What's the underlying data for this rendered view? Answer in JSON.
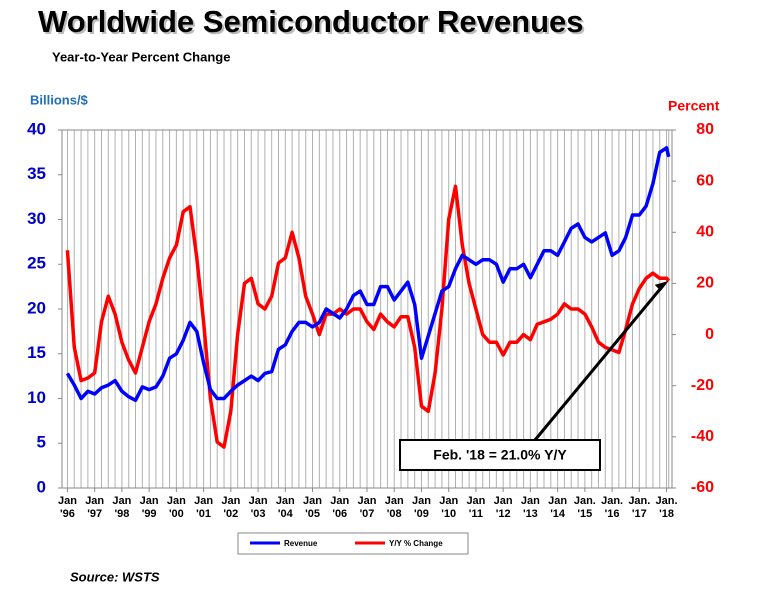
{
  "chart_data": {
    "type": "line",
    "title": "Worldwide Semiconductor Revenues",
    "subtitle": "Year-to-Year Percent Change",
    "y_label": "Billions/$",
    "y2_label": "Percent",
    "source": "Source: WSTS",
    "annotation": "Feb. '18 = 21.0% Y/Y",
    "x": [
      1996,
      1996.25,
      1996.5,
      1996.75,
      1997,
      1997.25,
      1997.5,
      1997.75,
      1998,
      1998.25,
      1998.5,
      1998.75,
      1999,
      1999.25,
      1999.5,
      1999.75,
      2000,
      2000.25,
      2000.5,
      2000.75,
      2001,
      2001.25,
      2001.5,
      2001.75,
      2002,
      2002.25,
      2002.5,
      2002.75,
      2003,
      2003.25,
      2003.5,
      2003.75,
      2004,
      2004.25,
      2004.5,
      2004.75,
      2005,
      2005.25,
      2005.5,
      2005.75,
      2006,
      2006.25,
      2006.5,
      2006.75,
      2007,
      2007.25,
      2007.5,
      2007.75,
      2008,
      2008.25,
      2008.5,
      2008.75,
      2009,
      2009.25,
      2009.5,
      2009.75,
      2010,
      2010.25,
      2010.5,
      2010.75,
      2011,
      2011.25,
      2011.5,
      2011.75,
      2012,
      2012.25,
      2012.5,
      2012.75,
      2013,
      2013.25,
      2013.5,
      2013.75,
      2014,
      2014.25,
      2014.5,
      2014.75,
      2015,
      2015.25,
      2015.5,
      2015.75,
      2016,
      2016.25,
      2016.5,
      2016.75,
      2017,
      2017.25,
      2017.5,
      2017.75,
      2018,
      2018.08
    ],
    "series": [
      {
        "name": "Revenue",
        "color": "#0000ff",
        "values": [
          12.8,
          11.5,
          10.0,
          10.8,
          10.5,
          11.2,
          11.5,
          12.0,
          10.8,
          10.2,
          9.8,
          11.3,
          11.0,
          11.3,
          12.5,
          14.5,
          15.0,
          16.5,
          18.5,
          17.5,
          14.0,
          11.0,
          10.0,
          10.0,
          10.8,
          11.5,
          12.0,
          12.5,
          12.0,
          12.8,
          13.0,
          15.5,
          16.0,
          17.5,
          18.5,
          18.5,
          18.0,
          18.5,
          20.0,
          19.5,
          19.0,
          20.0,
          21.5,
          22.0,
          20.5,
          20.5,
          22.5,
          22.5,
          21.0,
          22.0,
          23.0,
          20.5,
          14.5,
          17.0,
          19.5,
          22.0,
          22.5,
          24.5,
          26.0,
          25.5,
          25.0,
          25.5,
          25.5,
          25.0,
          23.0,
          24.5,
          24.5,
          25.0,
          23.5,
          25.0,
          26.5,
          26.5,
          26.0,
          27.5,
          29.0,
          29.5,
          28.0,
          27.5,
          28.0,
          28.5,
          26.0,
          26.5,
          28.0,
          30.5,
          30.5,
          31.5,
          34.0,
          37.5,
          38.0,
          37.0
        ]
      },
      {
        "name": "Y/Y % Change",
        "color": "#ff0000",
        "axis": "y2",
        "values": [
          33,
          -5,
          -18,
          -17,
          -15,
          5,
          15,
          8,
          -3,
          -10,
          -15,
          -5,
          5,
          12,
          22,
          30,
          35,
          48,
          50,
          30,
          5,
          -25,
          -42,
          -44,
          -30,
          0,
          20,
          22,
          12,
          10,
          15,
          28,
          30,
          40,
          30,
          15,
          8,
          0,
          8,
          8,
          10,
          8,
          10,
          10,
          5,
          2,
          8,
          5,
          3,
          7,
          7,
          -5,
          -28,
          -30,
          -15,
          10,
          45,
          58,
          35,
          20,
          10,
          0,
          -3,
          -3,
          -8,
          -3,
          -3,
          0,
          -2,
          4,
          5,
          6,
          8,
          12,
          10,
          10,
          8,
          3,
          -3,
          -5,
          -6,
          -7,
          2,
          12,
          18,
          22,
          24,
          22,
          22,
          21
        ]
      }
    ],
    "xlim": [
      1995.8,
      2018.2
    ],
    "xticks": [
      {
        "value": 1996,
        "label": [
          "Jan",
          "'96"
        ]
      },
      {
        "value": 1997,
        "label": [
          "Jan",
          "'97"
        ]
      },
      {
        "value": 1998,
        "label": [
          "Jan",
          "'98"
        ]
      },
      {
        "value": 1999,
        "label": [
          "Jan",
          "'99"
        ]
      },
      {
        "value": 2000,
        "label": [
          "Jan",
          "'00"
        ]
      },
      {
        "value": 2001,
        "label": [
          "Jan",
          "'01"
        ]
      },
      {
        "value": 2002,
        "label": [
          "Jan",
          "'02"
        ]
      },
      {
        "value": 2003,
        "label": [
          "Jan",
          "'03"
        ]
      },
      {
        "value": 2004,
        "label": [
          "Jan",
          "'04"
        ]
      },
      {
        "value": 2005,
        "label": [
          "Jan",
          "'05"
        ]
      },
      {
        "value": 2006,
        "label": [
          "Jan",
          "'06"
        ]
      },
      {
        "value": 2007,
        "label": [
          "Jan",
          "'07"
        ]
      },
      {
        "value": 2008,
        "label": [
          "Jan",
          "'08"
        ]
      },
      {
        "value": 2009,
        "label": [
          "Jan",
          "'09"
        ]
      },
      {
        "value": 2010,
        "label": [
          "Jan",
          "'10"
        ]
      },
      {
        "value": 2011,
        "label": [
          "Jan",
          "'11"
        ]
      },
      {
        "value": 2012,
        "label": [
          "Jan",
          "'12"
        ]
      },
      {
        "value": 2013,
        "label": [
          "Jan",
          "'13"
        ]
      },
      {
        "value": 2014,
        "label": [
          "Jan",
          "'14"
        ]
      },
      {
        "value": 2015,
        "label": [
          "Jan.",
          "'15"
        ]
      },
      {
        "value": 2016,
        "label": [
          "Jan.",
          "'16"
        ]
      },
      {
        "value": 2017,
        "label": [
          "Jan.",
          "'17"
        ]
      },
      {
        "value": 2018,
        "label": [
          "Jan.",
          "'18"
        ]
      }
    ],
    "ylim": [
      0,
      40
    ],
    "yticks": [
      0,
      5,
      10,
      15,
      20,
      25,
      30,
      35,
      40
    ],
    "y2lim": [
      -60,
      80
    ],
    "y2ticks": [
      -60,
      -40,
      -20,
      0,
      20,
      40,
      60,
      80
    ],
    "grid": true
  }
}
